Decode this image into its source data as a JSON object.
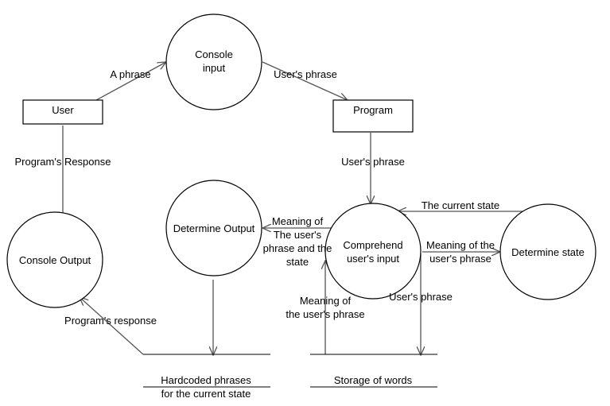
{
  "processes": {
    "console_input": [
      "Console",
      "input"
    ],
    "determine_output": "Determine Output",
    "comprehend": [
      "Comprehend",
      "user's input"
    ],
    "determine_state": "Determine state",
    "console_output": "Console Output"
  },
  "entities": {
    "user": "User",
    "program": "Program"
  },
  "stores": {
    "hardcoded": [
      "Hardcoded phrases",
      "for the current state"
    ],
    "words": "Storage of words"
  },
  "flows": {
    "a_phrase": "A phrase",
    "users_phrase_top": "User's phrase",
    "programs_response_up": "Program's Response",
    "users_phrase_mid": "User's phrase",
    "the_current_state": "The current state",
    "meaning_to_output": [
      "Meaning of",
      "The user's",
      "phrase and the",
      "state"
    ],
    "meaning_to_state": [
      "Meaning of the",
      "user's phrase"
    ],
    "users_phrase_store": "User's phrase",
    "meaning_from_store": [
      "Meaning of",
      "the user's phrase"
    ],
    "programs_response_low": "Program's response"
  }
}
